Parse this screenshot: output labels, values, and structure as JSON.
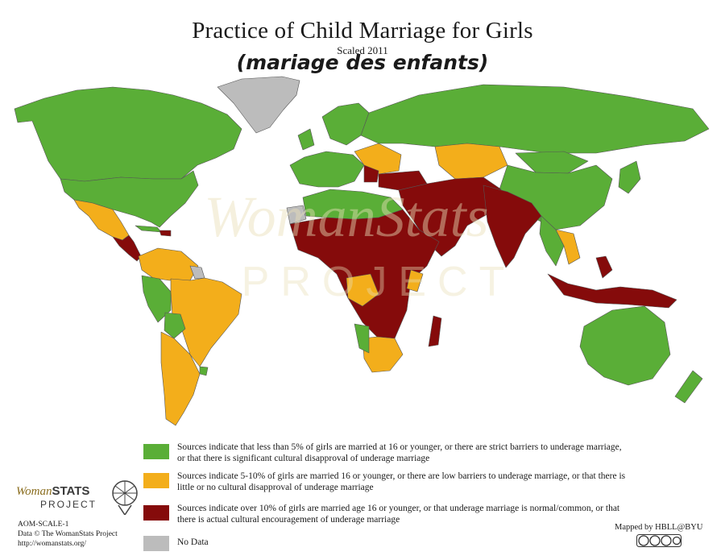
{
  "map": {
    "title": "Practice of Child Marriage for Girls",
    "subtitle": "Scaled 2011",
    "overlay_title": "(mariage des enfants)",
    "watermark": "WomanStats",
    "watermark_sub": "PROJECT",
    "colors": {
      "ocean": "#ffffff",
      "green": "#5aae37",
      "orange": "#f3ae1b",
      "red": "#850b0b",
      "gray": "#bcbcbc",
      "border": "#555555"
    },
    "legend": [
      {
        "color": "#5aae37",
        "label": "Sources indicate that less than 5% of girls are married at 16 or younger, or there are strict barriers to underage marriage, or that there is significant cultural disapproval of underage marriage"
      },
      {
        "color": "#f3ae1b",
        "label": "Sources indicate 5-10% of girls are married 16 or younger, or there are low barriers to underage marriage, or that there is little or no cultural disapproval of underage marriage"
      },
      {
        "color": "#850b0b",
        "label": "Sources indicate over 10% of girls are married age 16 or younger, or that underage marriage is normal/common, or that there is actual cultural encouragement of underage marriage"
      },
      {
        "color": "#bcbcbc",
        "label": "No Data"
      }
    ],
    "logo": {
      "brand_a": "Woman",
      "brand_b": "STATS",
      "project": "PROJECT"
    },
    "source_lines": [
      "AOM-SCALE-1",
      "Data © The WomanStats Project",
      "http://womanstats.org/"
    ],
    "credit": "Mapped by HBLL@BYU",
    "license_icon": "creative-commons-icon"
  }
}
